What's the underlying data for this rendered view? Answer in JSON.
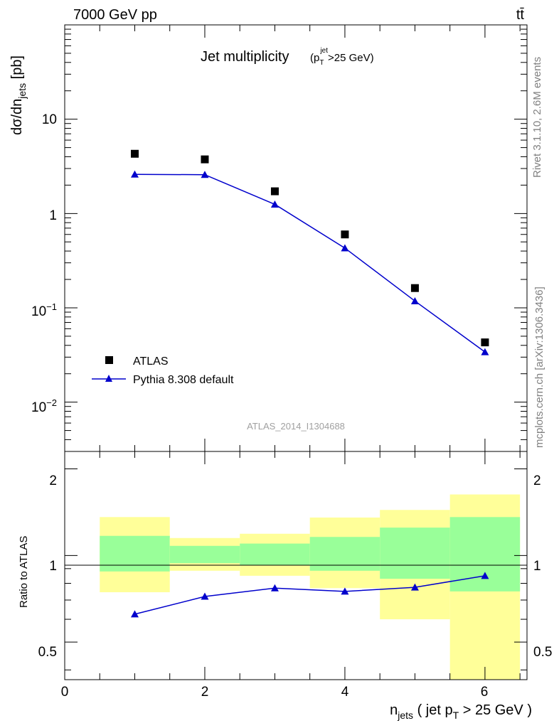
{
  "header": {
    "left": "7000 GeV pp",
    "right": "tt̄"
  },
  "side_text": {
    "rivet": "Rivet 3.1.10,  2.6M events",
    "source": "mcplots.cern.ch [arXiv:1306.3436]"
  },
  "chart_data": [
    {
      "panel": "main",
      "type": "scatter",
      "title": "Jet multiplicity",
      "title_suffix": "(p_T^jet >25 GeV)",
      "ylabel": "dσ/dn_jets [pb]",
      "yscale": "log",
      "ylim": [
        0.003,
        100
      ],
      "xlim": [
        0,
        6.6
      ],
      "ytick_labels": [
        "10",
        "1",
        "10^-1",
        "10^-2"
      ],
      "watermark": "ATLAS_2014_I1304688",
      "legend": {
        "placement": "bottom-left",
        "entries": [
          "ATLAS",
          "Pythia 8.308 default"
        ]
      },
      "series": [
        {
          "name": "ATLAS",
          "marker": "square",
          "color": "#000000",
          "x": [
            1,
            2,
            3,
            4,
            5,
            6
          ],
          "y": [
            4.3,
            3.75,
            1.72,
            0.6,
            0.162,
            0.043
          ]
        },
        {
          "name": "Pythia 8.308 default",
          "marker": "triangle",
          "line": true,
          "color": "#0000cc",
          "x": [
            1,
            2,
            3,
            4,
            5,
            6
          ],
          "y": [
            2.6,
            2.58,
            1.25,
            0.43,
            0.118,
            0.034
          ]
        }
      ]
    },
    {
      "panel": "ratio",
      "type": "line",
      "ylabel": "Ratio to ATLAS",
      "xlabel": "n_jets ( jet p_T > 25 GeV )",
      "xlim": [
        0,
        6.6
      ],
      "ylim": [
        0.37,
        2.3
      ],
      "xticks": [
        0,
        2,
        4,
        6
      ],
      "yticks": [
        0.5,
        1,
        2
      ],
      "bands": [
        {
          "x0": 0.5,
          "x1": 1.5,
          "green": [
            0.88,
            1.17
          ],
          "yellow": [
            0.745,
            1.36
          ]
        },
        {
          "x0": 1.5,
          "x1": 2.5,
          "green": [
            0.94,
            1.08
          ],
          "yellow": [
            0.885,
            1.15
          ]
        },
        {
          "x0": 2.5,
          "x1": 3.5,
          "green": [
            0.925,
            1.1
          ],
          "yellow": [
            0.85,
            1.19
          ]
        },
        {
          "x0": 3.5,
          "x1": 4.5,
          "green": [
            0.885,
            1.16
          ],
          "yellow": [
            0.77,
            1.355
          ]
        },
        {
          "x0": 4.5,
          "x1": 5.5,
          "green": [
            0.83,
            1.25
          ],
          "yellow": [
            0.6,
            1.44
          ]
        },
        {
          "x0": 5.5,
          "x1": 6.5,
          "green": [
            0.75,
            1.36
          ],
          "yellow": [
            0.37,
            1.63
          ]
        }
      ],
      "colors": {
        "green": "#99ff99",
        "yellow": "#ffff99",
        "mc": "#0000cc"
      },
      "series": [
        {
          "name": "Pythia 8.308 default",
          "x": [
            1,
            2,
            3,
            4,
            5,
            6
          ],
          "y": [
            0.625,
            0.72,
            0.77,
            0.75,
            0.775,
            0.85
          ]
        }
      ]
    }
  ]
}
